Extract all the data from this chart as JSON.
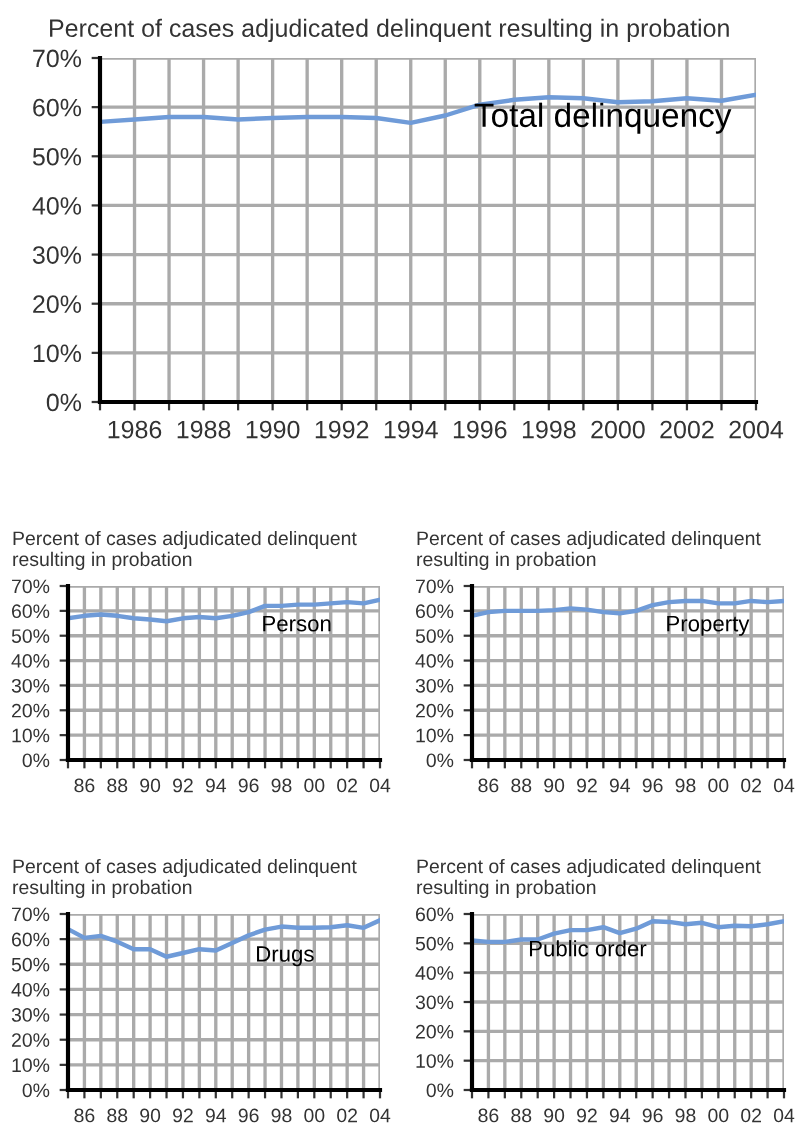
{
  "chart_data": [
    {
      "type": "line",
      "title": "Percent of cases adjudicated delinquent resulting in probation",
      "x": [
        1985,
        1986,
        1987,
        1988,
        1989,
        1990,
        1991,
        1992,
        1993,
        1994,
        1995,
        1996,
        1997,
        1998,
        1999,
        2000,
        2001,
        2002,
        2003,
        2004
      ],
      "series": [
        {
          "name": "Total delinquency",
          "color": "#6f9bd8",
          "values": [
            57,
            57.5,
            58,
            58,
            57.5,
            57.8,
            58,
            58,
            57.8,
            56.8,
            58.3,
            60.5,
            61.5,
            62,
            61.8,
            61,
            61.2,
            61.8,
            61.3,
            62.5
          ]
        }
      ],
      "xlim": [
        1985,
        2004
      ],
      "xticks": [
        {
          "value": 1985,
          "label": null
        },
        1986,
        {
          "value": 1987,
          "label": null
        },
        1988,
        {
          "value": 1989,
          "label": null
        },
        1990,
        {
          "value": 1991,
          "label": null
        },
        1992,
        {
          "value": 1993,
          "label": null
        },
        1994,
        {
          "value": 1995,
          "label": null
        },
        1996,
        {
          "value": 1997,
          "label": null
        },
        1998,
        {
          "value": 1999,
          "label": null
        },
        2000,
        {
          "value": 2001,
          "label": null
        },
        2002,
        {
          "value": 2003,
          "label": null
        },
        2004
      ],
      "ylim": [
        0,
        70
      ],
      "yticks": [
        {
          "value": 0,
          "label": "0%"
        },
        {
          "value": 10,
          "label": "10%"
        },
        {
          "value": 20,
          "label": "20%"
        },
        {
          "value": 30,
          "label": "30%"
        },
        {
          "value": 40,
          "label": "40%"
        },
        {
          "value": 50,
          "label": "50%"
        },
        {
          "value": 60,
          "label": "60%"
        },
        {
          "value": 70,
          "label": "70%"
        }
      ],
      "grid": true,
      "line_style": "solid",
      "marker": "none"
    },
    {
      "type": "line",
      "title": "Percent of cases adjudicated delinquent resulting in probation",
      "x": [
        1985,
        1986,
        1987,
        1988,
        1989,
        1990,
        1991,
        1992,
        1993,
        1994,
        1995,
        1996,
        1997,
        1998,
        1999,
        2000,
        2001,
        2002,
        2003,
        2004
      ],
      "series": [
        {
          "name": "Person",
          "color": "#6f9bd8",
          "values": [
            57,
            58,
            58.5,
            58,
            57,
            56.5,
            55.8,
            57,
            57.5,
            57,
            58,
            59.5,
            62,
            62,
            62.5,
            62.5,
            63,
            63.5,
            63,
            64.5
          ]
        }
      ],
      "xlim": [
        1985,
        2004
      ],
      "xticks": [
        {
          "value": 1985,
          "label": null
        },
        {
          "value": 1986,
          "label": "86"
        },
        {
          "value": 1987,
          "label": null
        },
        {
          "value": 1988,
          "label": "88"
        },
        {
          "value": 1989,
          "label": null
        },
        {
          "value": 1990,
          "label": "90"
        },
        {
          "value": 1991,
          "label": null
        },
        {
          "value": 1992,
          "label": "92"
        },
        {
          "value": 1993,
          "label": null
        },
        {
          "value": 1994,
          "label": "94"
        },
        {
          "value": 1995,
          "label": null
        },
        {
          "value": 1996,
          "label": "96"
        },
        {
          "value": 1997,
          "label": null
        },
        {
          "value": 1998,
          "label": "98"
        },
        {
          "value": 1999,
          "label": null
        },
        {
          "value": 2000,
          "label": "00"
        },
        {
          "value": 2001,
          "label": null
        },
        {
          "value": 2002,
          "label": "02"
        },
        {
          "value": 2003,
          "label": null
        },
        {
          "value": 2004,
          "label": "04"
        }
      ],
      "ylim": [
        0,
        70
      ],
      "yticks": [
        {
          "value": 0,
          "label": "0%"
        },
        {
          "value": 10,
          "label": "10%"
        },
        {
          "value": 20,
          "label": "20%"
        },
        {
          "value": 30,
          "label": "30%"
        },
        {
          "value": 40,
          "label": "40%"
        },
        {
          "value": 50,
          "label": "50%"
        },
        {
          "value": 60,
          "label": "60%"
        },
        {
          "value": 70,
          "label": "70%"
        }
      ],
      "grid": true,
      "line_style": "solid",
      "marker": "none"
    },
    {
      "type": "line",
      "title": "Percent of cases adjudicated delinquent resulting in probation",
      "x": [
        1985,
        1986,
        1987,
        1988,
        1989,
        1990,
        1991,
        1992,
        1993,
        1994,
        1995,
        1996,
        1997,
        1998,
        1999,
        2000,
        2001,
        2002,
        2003,
        2004
      ],
      "series": [
        {
          "name": "Property",
          "color": "#6f9bd8",
          "values": [
            58,
            59.5,
            60,
            60,
            60,
            60.3,
            61,
            60.5,
            59.5,
            59,
            60,
            62.3,
            63.5,
            64,
            64,
            63,
            63,
            64,
            63.5,
            64
          ]
        }
      ],
      "xlim": [
        1985,
        2004
      ],
      "xticks": [
        {
          "value": 1985,
          "label": null
        },
        {
          "value": 1986,
          "label": "86"
        },
        {
          "value": 1987,
          "label": null
        },
        {
          "value": 1988,
          "label": "88"
        },
        {
          "value": 1989,
          "label": null
        },
        {
          "value": 1990,
          "label": "90"
        },
        {
          "value": 1991,
          "label": null
        },
        {
          "value": 1992,
          "label": "92"
        },
        {
          "value": 1993,
          "label": null
        },
        {
          "value": 1994,
          "label": "94"
        },
        {
          "value": 1995,
          "label": null
        },
        {
          "value": 1996,
          "label": "96"
        },
        {
          "value": 1997,
          "label": null
        },
        {
          "value": 1998,
          "label": "98"
        },
        {
          "value": 1999,
          "label": null
        },
        {
          "value": 2000,
          "label": "00"
        },
        {
          "value": 2001,
          "label": null
        },
        {
          "value": 2002,
          "label": "02"
        },
        {
          "value": 2003,
          "label": null
        },
        {
          "value": 2004,
          "label": "04"
        }
      ],
      "ylim": [
        0,
        70
      ],
      "yticks": [
        {
          "value": 0,
          "label": "0%"
        },
        {
          "value": 10,
          "label": "10%"
        },
        {
          "value": 20,
          "label": "20%"
        },
        {
          "value": 30,
          "label": "30%"
        },
        {
          "value": 40,
          "label": "40%"
        },
        {
          "value": 50,
          "label": "50%"
        },
        {
          "value": 60,
          "label": "60%"
        },
        {
          "value": 70,
          "label": "70%"
        }
      ],
      "grid": true,
      "line_style": "solid",
      "marker": "none"
    },
    {
      "type": "line",
      "title": "Percent of cases adjudicated delinquent resulting in probation",
      "x": [
        1985,
        1986,
        1987,
        1988,
        1989,
        1990,
        1991,
        1992,
        1993,
        1994,
        1995,
        1996,
        1997,
        1998,
        1999,
        2000,
        2001,
        2002,
        2003,
        2004
      ],
      "series": [
        {
          "name": "Drugs",
          "color": "#6f9bd8",
          "values": [
            64,
            60.5,
            61.3,
            59,
            56,
            56,
            53,
            54.5,
            56,
            55.5,
            58.5,
            61.5,
            63.8,
            65,
            64.5,
            64.5,
            64.7,
            65.5,
            64.5,
            67.5
          ]
        }
      ],
      "xlim": [
        1985,
        2004
      ],
      "xticks": [
        {
          "value": 1985,
          "label": null
        },
        {
          "value": 1986,
          "label": "86"
        },
        {
          "value": 1987,
          "label": null
        },
        {
          "value": 1988,
          "label": "88"
        },
        {
          "value": 1989,
          "label": null
        },
        {
          "value": 1990,
          "label": "90"
        },
        {
          "value": 1991,
          "label": null
        },
        {
          "value": 1992,
          "label": "92"
        },
        {
          "value": 1993,
          "label": null
        },
        {
          "value": 1994,
          "label": "94"
        },
        {
          "value": 1995,
          "label": null
        },
        {
          "value": 1996,
          "label": "96"
        },
        {
          "value": 1997,
          "label": null
        },
        {
          "value": 1998,
          "label": "98"
        },
        {
          "value": 1999,
          "label": null
        },
        {
          "value": 2000,
          "label": "00"
        },
        {
          "value": 2001,
          "label": null
        },
        {
          "value": 2002,
          "label": "02"
        },
        {
          "value": 2003,
          "label": null
        },
        {
          "value": 2004,
          "label": "04"
        }
      ],
      "ylim": [
        0,
        70
      ],
      "yticks": [
        {
          "value": 0,
          "label": "0%"
        },
        {
          "value": 10,
          "label": "10%"
        },
        {
          "value": 20,
          "label": "20%"
        },
        {
          "value": 30,
          "label": "30%"
        },
        {
          "value": 40,
          "label": "40%"
        },
        {
          "value": 50,
          "label": "50%"
        },
        {
          "value": 60,
          "label": "60%"
        },
        {
          "value": 70,
          "label": "70%"
        }
      ],
      "grid": true,
      "line_style": "solid",
      "marker": "none"
    },
    {
      "type": "line",
      "title": "Percent of cases adjudicated delinquent resulting in probation",
      "x": [
        1985,
        1986,
        1987,
        1988,
        1989,
        1990,
        1991,
        1992,
        1993,
        1994,
        1995,
        1996,
        1997,
        1998,
        1999,
        2000,
        2001,
        2002,
        2003,
        2004
      ],
      "series": [
        {
          "name": "Public order",
          "color": "#6f9bd8",
          "values": [
            51,
            50.5,
            50.5,
            51.3,
            51.3,
            53.3,
            54.5,
            54.5,
            55.5,
            53.5,
            55,
            57.5,
            57.3,
            56.5,
            57,
            55.5,
            56,
            55.8,
            56.5,
            57.5
          ]
        }
      ],
      "xlim": [
        1985,
        2004
      ],
      "xticks": [
        {
          "value": 1985,
          "label": null
        },
        {
          "value": 1986,
          "label": "86"
        },
        {
          "value": 1987,
          "label": null
        },
        {
          "value": 1988,
          "label": "88"
        },
        {
          "value": 1989,
          "label": null
        },
        {
          "value": 1990,
          "label": "90"
        },
        {
          "value": 1991,
          "label": null
        },
        {
          "value": 1992,
          "label": "92"
        },
        {
          "value": 1993,
          "label": null
        },
        {
          "value": 1994,
          "label": "94"
        },
        {
          "value": 1995,
          "label": null
        },
        {
          "value": 1996,
          "label": "96"
        },
        {
          "value": 1997,
          "label": null
        },
        {
          "value": 1998,
          "label": "98"
        },
        {
          "value": 1999,
          "label": null
        },
        {
          "value": 2000,
          "label": "00"
        },
        {
          "value": 2001,
          "label": null
        },
        {
          "value": 2002,
          "label": "02"
        },
        {
          "value": 2003,
          "label": null
        },
        {
          "value": 2004,
          "label": "04"
        }
      ],
      "ylim": [
        0,
        60
      ],
      "yticks": [
        {
          "value": 0,
          "label": "0%"
        },
        {
          "value": 10,
          "label": "10%"
        },
        {
          "value": 20,
          "label": "20%"
        },
        {
          "value": 30,
          "label": "30%"
        },
        {
          "value": 40,
          "label": "40%"
        },
        {
          "value": 50,
          "label": "50%"
        },
        {
          "value": 60,
          "label": "60%"
        }
      ],
      "grid": true,
      "line_style": "solid",
      "marker": "none"
    }
  ]
}
